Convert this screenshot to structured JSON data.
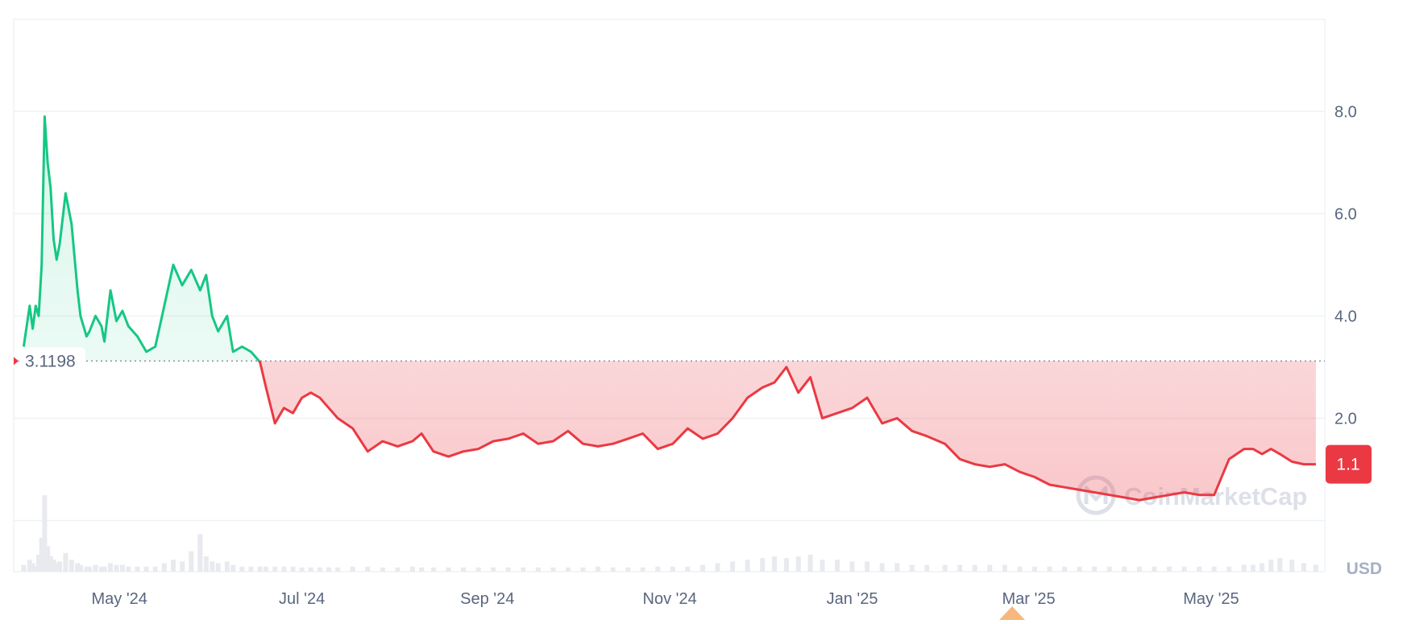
{
  "chart_data": {
    "type": "area",
    "baseline": {
      "value": 3.1198,
      "label": "3.1198"
    },
    "current": {
      "value": 1.1,
      "label": "1.1"
    },
    "currency_label": "USD",
    "watermark": "CoinMarketCap",
    "ylim": [
      -1.0,
      9.8
    ],
    "y_ticks": [
      {
        "value": 2.0,
        "label": "2.0"
      },
      {
        "value": 4.0,
        "label": "4.0"
      },
      {
        "value": 6.0,
        "label": "6.0"
      },
      {
        "value": 8.0,
        "label": "8.0"
      }
    ],
    "x_ticks": [
      {
        "date": "2024-05-01",
        "label": "May '24"
      },
      {
        "date": "2024-07-01",
        "label": "Jul '24"
      },
      {
        "date": "2024-09-01",
        "label": "Sep '24"
      },
      {
        "date": "2024-11-01",
        "label": "Nov '24"
      },
      {
        "date": "2025-01-01",
        "label": "Jan '25"
      },
      {
        "date": "2025-03-01",
        "label": "Mar '25"
      },
      {
        "date": "2025-05-01",
        "label": "May '25"
      }
    ],
    "xlim": [
      "2024-03-28",
      "2025-06-08"
    ],
    "grid": true,
    "colors": {
      "up": "#16c784",
      "down": "#ea3943",
      "grid": "#eff2f5",
      "axis_text": "#58667e",
      "volume": "#e8eaef"
    },
    "series": [
      {
        "x": [
          "2024-03-30",
          "2024-04-01",
          "2024-04-02",
          "2024-04-03",
          "2024-04-04",
          "2024-04-05",
          "2024-04-06",
          "2024-04-07",
          "2024-04-08",
          "2024-04-09",
          "2024-04-10",
          "2024-04-11",
          "2024-04-13",
          "2024-04-15",
          "2024-04-17",
          "2024-04-18",
          "2024-04-20",
          "2024-04-21",
          "2024-04-23",
          "2024-04-25",
          "2024-04-26",
          "2024-04-28",
          "2024-04-30",
          "2024-05-02",
          "2024-05-04",
          "2024-05-07",
          "2024-05-10",
          "2024-05-13",
          "2024-05-16",
          "2024-05-19",
          "2024-05-22",
          "2024-05-25",
          "2024-05-28",
          "2024-05-30",
          "2024-06-01",
          "2024-06-03",
          "2024-06-06",
          "2024-06-08",
          "2024-06-11",
          "2024-06-14",
          "2024-06-17",
          "2024-06-19",
          "2024-06-22",
          "2024-06-25",
          "2024-06-28",
          "2024-07-01",
          "2024-07-04",
          "2024-07-07",
          "2024-07-10",
          "2024-07-13",
          "2024-07-18",
          "2024-07-23",
          "2024-07-28",
          "2024-08-02",
          "2024-08-07",
          "2024-08-10",
          "2024-08-14",
          "2024-08-19",
          "2024-08-24",
          "2024-08-29",
          "2024-09-03",
          "2024-09-08",
          "2024-09-13",
          "2024-09-18",
          "2024-09-23",
          "2024-09-28",
          "2024-10-03",
          "2024-10-08",
          "2024-10-13",
          "2024-10-18",
          "2024-10-23",
          "2024-10-28",
          "2024-11-02",
          "2024-11-07",
          "2024-11-12",
          "2024-11-17",
          "2024-11-22",
          "2024-11-27",
          "2024-12-02",
          "2024-12-06",
          "2024-12-10",
          "2024-12-14",
          "2024-12-18",
          "2024-12-22",
          "2024-12-27",
          "2025-01-01",
          "2025-01-06",
          "2025-01-11",
          "2025-01-16",
          "2025-01-21",
          "2025-01-26",
          "2025-02-01",
          "2025-02-06",
          "2025-02-11",
          "2025-02-16",
          "2025-02-21",
          "2025-02-26",
          "2025-03-03",
          "2025-03-08",
          "2025-03-13",
          "2025-03-18",
          "2025-03-23",
          "2025-03-28",
          "2025-04-02",
          "2025-04-07",
          "2025-04-12",
          "2025-04-17",
          "2025-04-22",
          "2025-04-27",
          "2025-05-02",
          "2025-05-07",
          "2025-05-12",
          "2025-05-15",
          "2025-05-18",
          "2025-05-21",
          "2025-05-24",
          "2025-05-28",
          "2025-06-01",
          "2025-06-05"
        ],
        "y": [
          3.4,
          4.2,
          3.75,
          4.2,
          4.0,
          5.0,
          7.9,
          7.0,
          6.5,
          5.5,
          5.1,
          5.4,
          6.4,
          5.8,
          4.5,
          4.0,
          3.6,
          3.7,
          4.0,
          3.8,
          3.5,
          4.5,
          3.9,
          4.1,
          3.8,
          3.6,
          3.3,
          3.4,
          4.2,
          5.0,
          4.6,
          4.9,
          4.5,
          4.8,
          4.0,
          3.7,
          4.0,
          3.3,
          3.4,
          3.3,
          3.1,
          2.6,
          1.9,
          2.2,
          2.1,
          2.4,
          2.5,
          2.4,
          2.2,
          2.0,
          1.8,
          1.35,
          1.55,
          1.45,
          1.55,
          1.7,
          1.35,
          1.25,
          1.35,
          1.4,
          1.55,
          1.6,
          1.7,
          1.5,
          1.55,
          1.75,
          1.5,
          1.45,
          1.5,
          1.6,
          1.7,
          1.4,
          1.5,
          1.8,
          1.6,
          1.7,
          2.0,
          2.4,
          2.6,
          2.7,
          3.0,
          2.5,
          2.8,
          2.0,
          2.1,
          2.2,
          2.4,
          1.9,
          2.0,
          1.75,
          1.65,
          1.5,
          1.2,
          1.1,
          1.05,
          1.1,
          0.95,
          0.85,
          0.7,
          0.65,
          0.6,
          0.55,
          0.5,
          0.45,
          0.4,
          0.45,
          0.5,
          0.55,
          0.5,
          0.5,
          1.2,
          1.4,
          1.4,
          1.3,
          1.4,
          1.3,
          1.15,
          1.1,
          1.1
        ],
        "volume": [
          8,
          14,
          10,
          6,
          20,
          40,
          90,
          30,
          18,
          14,
          10,
          12,
          22,
          14,
          10,
          8,
          6,
          6,
          8,
          6,
          6,
          10,
          8,
          8,
          6,
          6,
          6,
          6,
          10,
          14,
          12,
          24,
          44,
          18,
          12,
          10,
          12,
          8,
          6,
          6,
          6,
          6,
          6,
          6,
          6,
          5,
          5,
          5,
          5,
          5,
          6,
          6,
          5,
          5,
          6,
          5,
          5,
          5,
          5,
          5,
          5,
          5,
          5,
          5,
          5,
          5,
          5,
          6,
          5,
          5,
          5,
          6,
          6,
          6,
          8,
          10,
          12,
          14,
          16,
          18,
          16,
          18,
          20,
          14,
          14,
          12,
          12,
          10,
          10,
          8,
          8,
          8,
          8,
          8,
          8,
          8,
          6,
          6,
          6,
          6,
          6,
          6,
          6,
          6,
          6,
          6,
          6,
          6,
          6,
          6,
          6,
          8,
          8,
          10,
          14,
          16,
          14,
          10,
          8
        ]
      }
    ]
  }
}
